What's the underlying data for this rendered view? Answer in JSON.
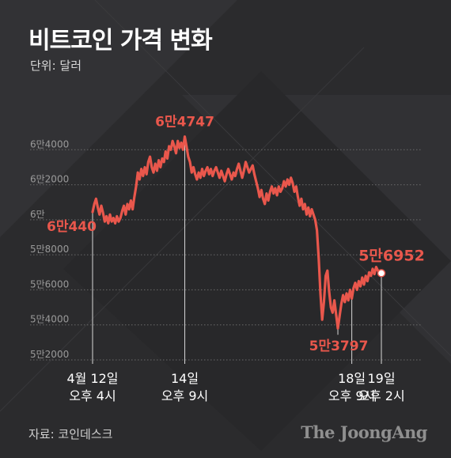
{
  "header": {
    "title": "비트코인 가격 변화",
    "unit": "단위: 달러"
  },
  "footer": {
    "source": "자료: 코인데스크",
    "brand": "The JoongAng"
  },
  "colors": {
    "background": "#2b2b2d",
    "line": "#e9574c",
    "annotation": "#e9574c",
    "grid": "#6a6a6a"
  },
  "chart_data": {
    "type": "line",
    "title": "비트코인 가격 변화",
    "ylabel": "단위: 달러",
    "ylim": [
      52000,
      66000
    ],
    "y_ticks": [
      {
        "value": 52000,
        "label": "5만2000"
      },
      {
        "value": 54000,
        "label": "5만4000"
      },
      {
        "value": 56000,
        "label": "5만6000"
      },
      {
        "value": 58000,
        "label": "5만8000"
      },
      {
        "value": 60000,
        "label": "6만"
      },
      {
        "value": 62000,
        "label": "6만2000"
      },
      {
        "value": 64000,
        "label": "6만4000"
      }
    ],
    "xlim": [
      0,
      166
    ],
    "x_ticks": [
      {
        "hour": 0,
        "line1": "4월 12일",
        "line2": "오후 4시"
      },
      {
        "hour": 53,
        "line1": "14일",
        "line2": "오후 9시"
      },
      {
        "hour": 149,
        "line1": "18일",
        "line2": "오후 9시"
      },
      {
        "hour": 166,
        "line1": "19일",
        "line2": "오후 2시"
      }
    ],
    "series": [
      {
        "points": [
          [
            0,
            60440
          ],
          [
            1,
            60900
          ],
          [
            2,
            61200
          ],
          [
            3,
            60700
          ],
          [
            4,
            60300
          ],
          [
            5,
            60800
          ],
          [
            6,
            60400
          ],
          [
            7,
            59900
          ],
          [
            8,
            60200
          ],
          [
            9,
            59800
          ],
          [
            10,
            60300
          ],
          [
            11,
            59900
          ],
          [
            12,
            60100
          ],
          [
            13,
            59800
          ],
          [
            14,
            60200
          ],
          [
            15,
            59900
          ],
          [
            16,
            60100
          ],
          [
            17,
            60500
          ],
          [
            18,
            60800
          ],
          [
            19,
            60300
          ],
          [
            20,
            60900
          ],
          [
            21,
            60600
          ],
          [
            22,
            61100
          ],
          [
            23,
            60600
          ],
          [
            24,
            61300
          ],
          [
            25,
            61900
          ],
          [
            26,
            62700
          ],
          [
            27,
            62300
          ],
          [
            28,
            62900
          ],
          [
            29,
            62500
          ],
          [
            30,
            63000
          ],
          [
            31,
            62600
          ],
          [
            32,
            63300
          ],
          [
            33,
            63600
          ],
          [
            34,
            63000
          ],
          [
            35,
            62700
          ],
          [
            36,
            63200
          ],
          [
            37,
            62800
          ],
          [
            38,
            63400
          ],
          [
            39,
            63000
          ],
          [
            40,
            63500
          ],
          [
            41,
            63300
          ],
          [
            42,
            63900
          ],
          [
            43,
            63500
          ],
          [
            44,
            64200
          ],
          [
            45,
            64000
          ],
          [
            46,
            64500
          ],
          [
            47,
            64200
          ],
          [
            48,
            63800
          ],
          [
            49,
            64500
          ],
          [
            50,
            64100
          ],
          [
            51,
            64400
          ],
          [
            52,
            64000
          ],
          [
            53,
            64747
          ],
          [
            54,
            64200
          ],
          [
            55,
            63600
          ],
          [
            56,
            63300
          ],
          [
            57,
            62700
          ],
          [
            58,
            63000
          ],
          [
            59,
            62600
          ],
          [
            60,
            62300
          ],
          [
            61,
            62700
          ],
          [
            62,
            62400
          ],
          [
            63,
            62900
          ],
          [
            64,
            62500
          ],
          [
            65,
            62800
          ],
          [
            66,
            63000
          ],
          [
            67,
            62600
          ],
          [
            68,
            62900
          ],
          [
            69,
            62500
          ],
          [
            70,
            62800
          ],
          [
            71,
            63000
          ],
          [
            72,
            62700
          ],
          [
            73,
            62400
          ],
          [
            74,
            62800
          ],
          [
            75,
            62500
          ],
          [
            76,
            62200
          ],
          [
            77,
            62600
          ],
          [
            78,
            62900
          ],
          [
            79,
            62600
          ],
          [
            80,
            62300
          ],
          [
            81,
            62700
          ],
          [
            82,
            62500
          ],
          [
            83,
            62900
          ],
          [
            84,
            63200
          ],
          [
            85,
            62800
          ],
          [
            86,
            62400
          ],
          [
            87,
            62800
          ],
          [
            88,
            63300
          ],
          [
            89,
            63000
          ],
          [
            90,
            62700
          ],
          [
            91,
            62900
          ],
          [
            92,
            63100
          ],
          [
            93,
            62600
          ],
          [
            94,
            62200
          ],
          [
            95,
            61800
          ],
          [
            96,
            61300
          ],
          [
            97,
            61700
          ],
          [
            98,
            61200
          ],
          [
            99,
            60900
          ],
          [
            100,
            61500
          ],
          [
            101,
            61100
          ],
          [
            102,
            61600
          ],
          [
            103,
            61900
          ],
          [
            104,
            61500
          ],
          [
            105,
            61800
          ],
          [
            106,
            61400
          ],
          [
            107,
            61900
          ],
          [
            108,
            61600
          ],
          [
            109,
            61800
          ],
          [
            110,
            62200
          ],
          [
            111,
            61900
          ],
          [
            112,
            62300
          ],
          [
            113,
            62000
          ],
          [
            114,
            62400
          ],
          [
            115,
            62100
          ],
          [
            116,
            61600
          ],
          [
            117,
            61900
          ],
          [
            118,
            61300
          ],
          [
            119,
            60800
          ],
          [
            120,
            61200
          ],
          [
            121,
            60600
          ],
          [
            122,
            60900
          ],
          [
            123,
            60300
          ],
          [
            124,
            60700
          ],
          [
            125,
            60200
          ],
          [
            126,
            60600
          ],
          [
            127,
            60300
          ],
          [
            128,
            60000
          ],
          [
            129,
            59400
          ],
          [
            130,
            57800
          ],
          [
            131,
            55800
          ],
          [
            132,
            54300
          ],
          [
            133,
            55300
          ],
          [
            134,
            56800
          ],
          [
            135,
            57100
          ],
          [
            136,
            55900
          ],
          [
            137,
            55000
          ],
          [
            138,
            54700
          ],
          [
            139,
            55400
          ],
          [
            140,
            54600
          ],
          [
            141,
            53797
          ],
          [
            142,
            54500
          ],
          [
            143,
            55200
          ],
          [
            144,
            55700
          ],
          [
            145,
            55300
          ],
          [
            146,
            55800
          ],
          [
            147,
            55400
          ],
          [
            148,
            56000
          ],
          [
            149,
            55500
          ],
          [
            150,
            56100
          ],
          [
            151,
            56400
          ],
          [
            152,
            56000
          ],
          [
            153,
            56500
          ],
          [
            154,
            56200
          ],
          [
            155,
            56700
          ],
          [
            156,
            56300
          ],
          [
            157,
            56800
          ],
          [
            158,
            56500
          ],
          [
            159,
            57000
          ],
          [
            160,
            56800
          ],
          [
            161,
            57200
          ],
          [
            162,
            56900
          ],
          [
            163,
            57300
          ],
          [
            164,
            57100
          ],
          [
            165,
            57000
          ],
          [
            166,
            56952
          ]
        ]
      }
    ],
    "annotations": [
      {
        "hour": 0,
        "value": 60440,
        "label": "6만440",
        "label_pos": "below-left"
      },
      {
        "hour": 53,
        "value": 64747,
        "label": "6만4747",
        "label_pos": "above"
      },
      {
        "hour": 141,
        "value": 53797,
        "label": "5만3797",
        "label_pos": "below"
      },
      {
        "hour": 166,
        "value": 56952,
        "label": "5만6952",
        "label_pos": "above-right"
      }
    ],
    "grid": "horizontal-dashed",
    "legend": "none"
  }
}
